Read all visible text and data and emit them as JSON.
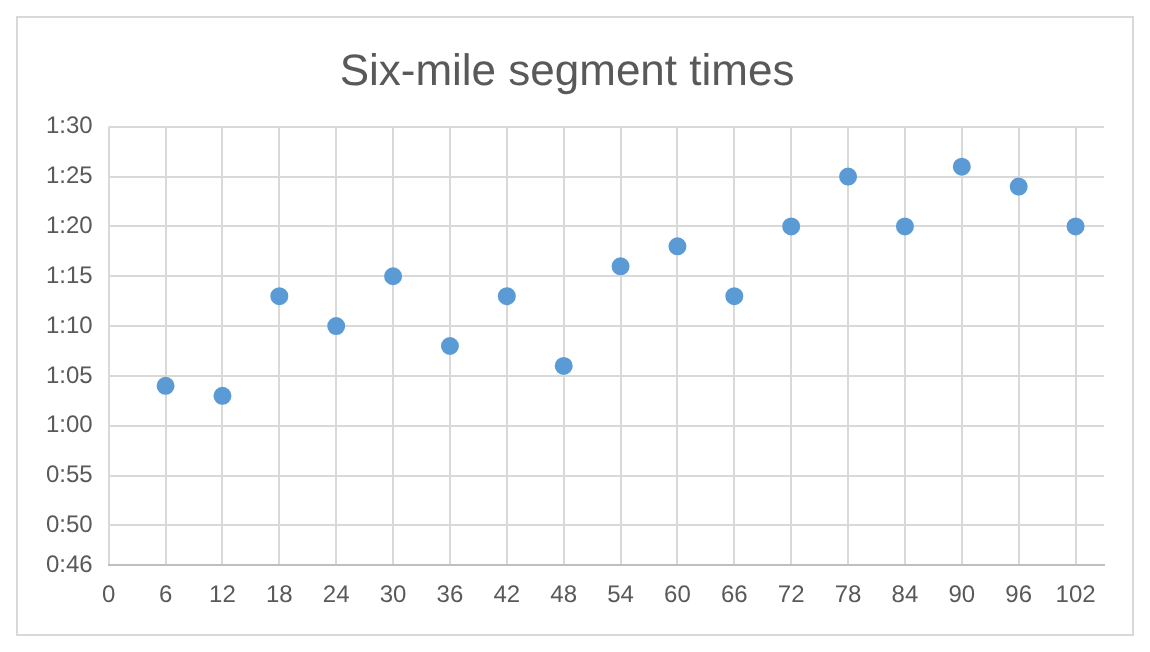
{
  "chart_data": {
    "type": "scatter",
    "title": "Six-mile segment times",
    "x": [
      6,
      12,
      18,
      24,
      30,
      36,
      42,
      48,
      54,
      60,
      66,
      72,
      78,
      84,
      90,
      96,
      102
    ],
    "values": [
      64,
      63,
      73,
      70,
      75,
      68,
      73,
      66,
      76,
      78,
      73,
      80,
      85,
      80,
      86,
      84,
      80
    ],
    "color": "#5b9bd5",
    "marker": "circle",
    "grid": true,
    "legend": false,
    "xlim": [
      0,
      105
    ],
    "xticks": [
      0,
      6,
      12,
      18,
      24,
      30,
      36,
      42,
      48,
      54,
      60,
      66,
      72,
      78,
      84,
      90,
      96,
      102
    ],
    "ylim": [
      46,
      90
    ],
    "yticks": [
      {
        "value": 46,
        "label": "0:46"
      },
      {
        "value": 50,
        "label": "0:50"
      },
      {
        "value": 55,
        "label": "0:55"
      },
      {
        "value": 60,
        "label": "1:00"
      },
      {
        "value": 65,
        "label": "1:05"
      },
      {
        "value": 70,
        "label": "1:10"
      },
      {
        "value": 75,
        "label": "1:15"
      },
      {
        "value": 80,
        "label": "1:20"
      },
      {
        "value": 85,
        "label": "1:25"
      },
      {
        "value": 90,
        "label": "1:30"
      }
    ]
  }
}
